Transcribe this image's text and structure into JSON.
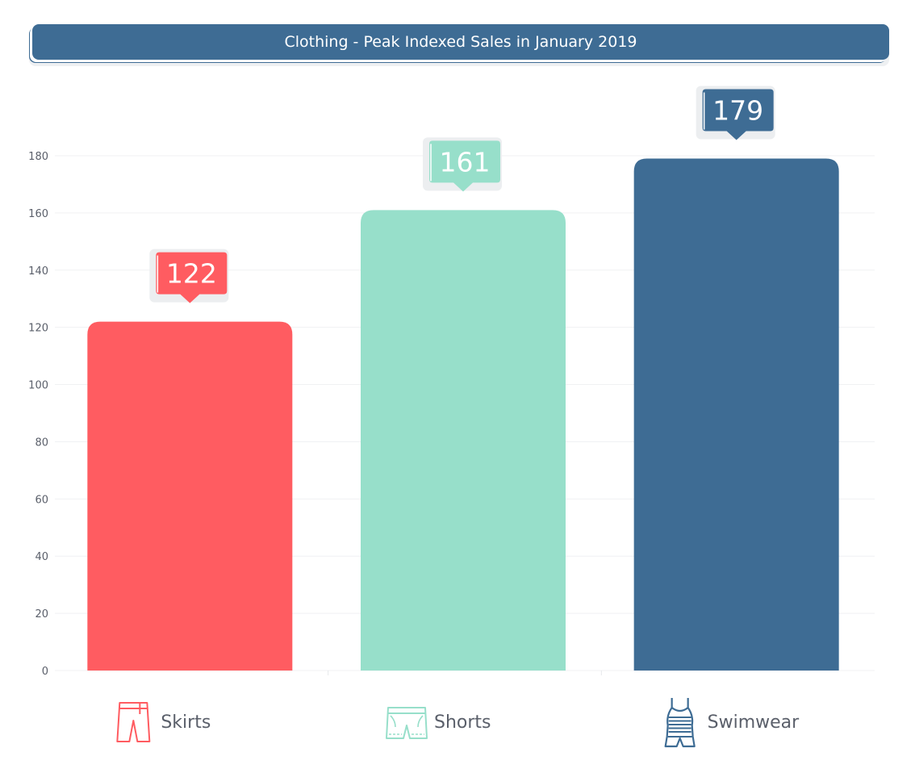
{
  "title": "Clothing - Peak Indexed Sales in January 2019",
  "chart_data": {
    "type": "bar",
    "title": "Clothing - Peak Indexed Sales in January 2019",
    "categories": [
      "Skirts",
      "Shorts",
      "Swimwear"
    ],
    "values": [
      122,
      161,
      179
    ],
    "colors": [
      "#ff5c61",
      "#97dfca",
      "#3e6c94"
    ],
    "icons": [
      "skirt-icon",
      "shorts-icon",
      "swimsuit-icon"
    ],
    "y_ticks": [
      0,
      20,
      40,
      60,
      80,
      100,
      120,
      140,
      160,
      180
    ],
    "ylim": [
      0,
      180
    ],
    "xlabel": "",
    "ylabel": "",
    "grid": true,
    "legend": "none"
  }
}
